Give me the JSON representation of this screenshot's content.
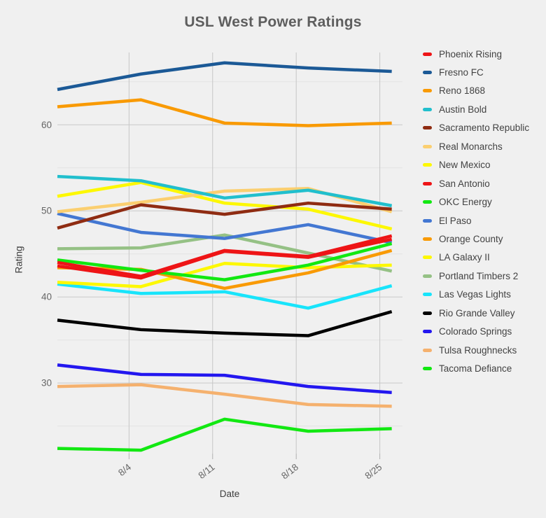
{
  "title": "USL West Power Ratings",
  "colors": {
    "background": "#f0f0f0",
    "grid_major": "#c9c9c9",
    "grid_vertical": "#c6c6c6",
    "grid_minor": "#e3e3e3",
    "tick_text": "#666666",
    "axis_title_text": "#3d3d3d",
    "title_text": "#5e5e5e",
    "legend_text": "#424242",
    "tick_mark": "#b0b0b0"
  },
  "chart_data": {
    "type": "line",
    "title": "USL West Power Ratings",
    "xlabel": "Date",
    "ylabel": "Rating",
    "grid": true,
    "legend_position": "right",
    "x_days": [
      0,
      7,
      14,
      21,
      28
    ],
    "x_tick_days": [
      6,
      13,
      20,
      27
    ],
    "x_tick_labels": [
      "8/4",
      "8/11",
      "8/18",
      "8/25"
    ],
    "y_major_ticks": [
      30,
      40,
      50,
      60
    ],
    "y_minor_ticks": [
      25,
      35,
      45,
      55,
      65
    ],
    "ylim": [
      21.8,
      68.4
    ],
    "xlim_days": [
      0,
      28.9
    ],
    "line_width": 4.5,
    "series": [
      {
        "name": "Phoenix Rising",
        "color": "#ee1416",
        "values": [
          44.0,
          42.4,
          45.4,
          44.7,
          47.1
        ]
      },
      {
        "name": "Fresno FC",
        "color": "#1b5996",
        "values": [
          64.1,
          65.9,
          67.2,
          66.6,
          66.2
        ]
      },
      {
        "name": "Reno 1868",
        "color": "#f99a04",
        "values": [
          62.1,
          62.9,
          60.2,
          59.9,
          60.2
        ]
      },
      {
        "name": "Austin Bold",
        "color": "#21bfcd",
        "values": [
          54.0,
          53.5,
          51.5,
          52.4,
          50.6
        ]
      },
      {
        "name": "Sacramento Republic",
        "color": "#8f2c12",
        "values": [
          48.0,
          50.7,
          49.6,
          50.9,
          50.2
        ]
      },
      {
        "name": "Real Monarchs",
        "color": "#fbcf70",
        "values": [
          49.9,
          51.0,
          52.3,
          52.6,
          49.9
        ]
      },
      {
        "name": "New Mexico",
        "color": "#fdf800",
        "values": [
          51.7,
          53.3,
          50.9,
          50.2,
          47.9
        ]
      },
      {
        "name": "San Antonio",
        "color": "#ee1416",
        "values": [
          43.6,
          42.2,
          45.3,
          44.6,
          46.7
        ]
      },
      {
        "name": "OKC Energy",
        "color": "#12e812",
        "values": [
          44.3,
          43.1,
          42.0,
          43.7,
          46.2
        ]
      },
      {
        "name": "El Paso",
        "color": "#4377d2",
        "values": [
          49.7,
          47.5,
          46.8,
          48.4,
          46.3
        ]
      },
      {
        "name": "Orange County",
        "color": "#f99a04",
        "values": [
          43.4,
          43.2,
          41.0,
          42.8,
          45.4
        ]
      },
      {
        "name": "LA Galaxy II",
        "color": "#fdf800",
        "values": [
          41.7,
          41.2,
          43.9,
          43.4,
          43.7
        ]
      },
      {
        "name": "Portland Timbers 2",
        "color": "#95c185",
        "values": [
          45.6,
          45.7,
          47.2,
          45.1,
          43.0
        ]
      },
      {
        "name": "Las Vegas Lights",
        "color": "#18e4fb",
        "values": [
          41.5,
          40.4,
          40.6,
          38.7,
          41.3
        ]
      },
      {
        "name": "Rio Grande Valley",
        "color": "#000000",
        "values": [
          37.3,
          36.2,
          35.8,
          35.5,
          38.3
        ]
      },
      {
        "name": "Colorado Springs",
        "color": "#2317ef",
        "values": [
          32.1,
          31.0,
          30.9,
          29.6,
          28.9
        ]
      },
      {
        "name": "Tulsa Roughnecks",
        "color": "#f5b16e",
        "values": [
          29.6,
          29.8,
          28.7,
          27.5,
          27.3
        ]
      },
      {
        "name": "Tacoma Defiance",
        "color": "#12e812",
        "values": [
          22.4,
          22.2,
          25.8,
          24.4,
          24.7
        ]
      }
    ]
  }
}
